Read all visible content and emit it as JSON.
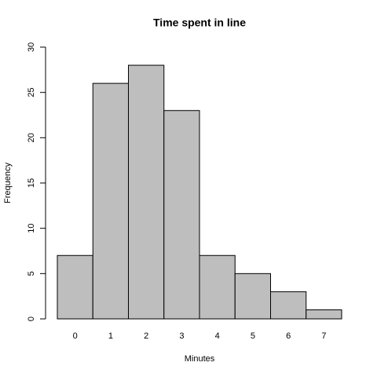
{
  "chart_data": {
    "type": "bar",
    "title": "Time spent in line",
    "x_label": "Minutes",
    "y_label": "Frequency",
    "categories": [
      "0",
      "1",
      "2",
      "3",
      "4",
      "5",
      "6",
      "7"
    ],
    "values": [
      7,
      26,
      28,
      23,
      7,
      5,
      3,
      1
    ],
    "color": "#bebebe",
    "ylim": [
      0,
      30
    ],
    "yticks": [
      0,
      5,
      10,
      15,
      20,
      25,
      30
    ]
  }
}
